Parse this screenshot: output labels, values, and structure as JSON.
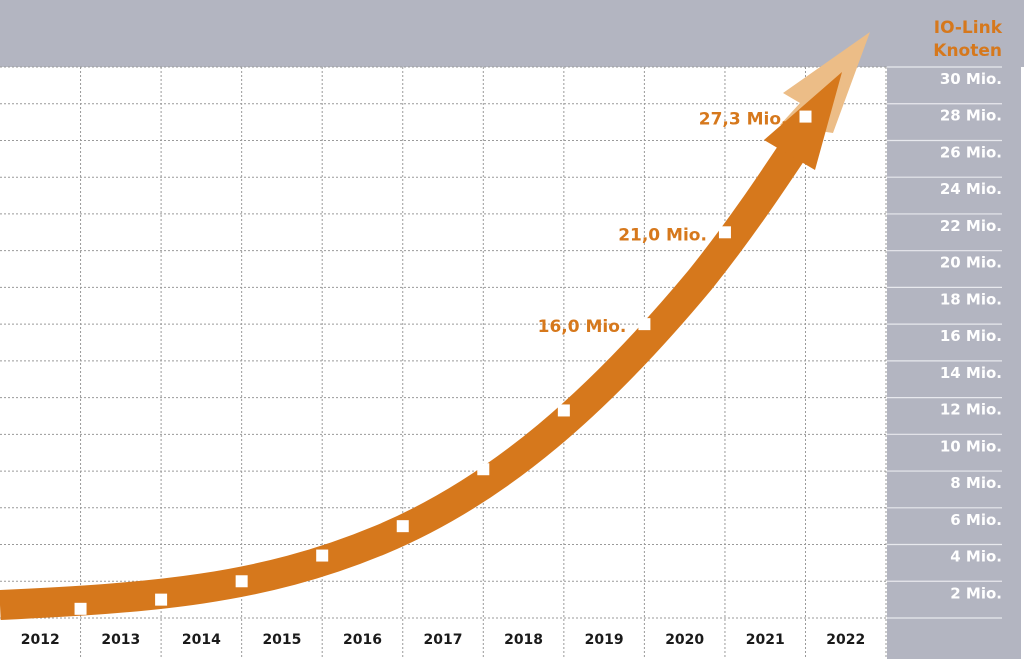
{
  "chart_data": {
    "type": "line",
    "title": "",
    "ylabel_lines": [
      "IO-Link",
      "Knoten"
    ],
    "xlabel": "",
    "categories": [
      "2012",
      "2013",
      "2014",
      "2015",
      "2016",
      "2017",
      "2018",
      "2019",
      "2020",
      "2021",
      "2022"
    ],
    "series": [
      {
        "x": [
          "2012",
          "2013",
          "2014",
          "2015",
          "2016",
          "2017",
          "2018",
          "2019",
          "2020",
          "2021"
        ],
        "values": [
          0.5,
          1.0,
          2.0,
          3.4,
          5.0,
          8.1,
          11.3,
          16.0,
          21.0,
          27.3
        ]
      }
    ],
    "data_labels": [
      {
        "x": "2019",
        "value": 16.0,
        "text": "16,0 Mio."
      },
      {
        "x": "2020",
        "value": 21.0,
        "text": "21,0 Mio."
      },
      {
        "x": "2021",
        "value": 27.3,
        "text": "27,3 Mio."
      }
    ],
    "yticks": [
      {
        "value": 30,
        "label": "30 Mio."
      },
      {
        "value": 28,
        "label": "28 Mio."
      },
      {
        "value": 26,
        "label": "26 Mio."
      },
      {
        "value": 24,
        "label": "24 Mio."
      },
      {
        "value": 22,
        "label": "22 Mio."
      },
      {
        "value": 20,
        "label": "20 Mio."
      },
      {
        "value": 18,
        "label": "18 Mio."
      },
      {
        "value": 16,
        "label": "16 Mio."
      },
      {
        "value": 14,
        "label": "14 Mio."
      },
      {
        "value": 12,
        "label": "12 Mio."
      },
      {
        "value": 10,
        "label": "10 Mio."
      },
      {
        "value": 8,
        "label": "8 Mio."
      },
      {
        "value": 6,
        "label": "6 Mio."
      },
      {
        "value": 4,
        "label": "4 Mio."
      },
      {
        "value": 2,
        "label": "2 Mio."
      }
    ],
    "ylim": [
      0,
      30
    ],
    "y_axis_side": "right",
    "grid": true,
    "colors": {
      "arrow": "#d6781c",
      "arrow_light": "#ecbd87",
      "panel": "#b3b5c1",
      "marker": "#ffffff",
      "grid": "#9a9a9a"
    }
  }
}
